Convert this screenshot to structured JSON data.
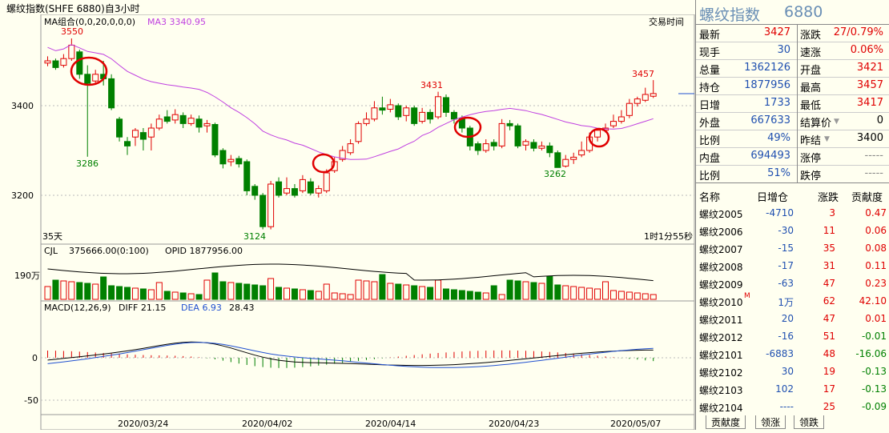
{
  "window_title": "螺纹指数(SHFE 6880)自3小时",
  "main_chart": {
    "ma_group_label": "MA组合(0,0,20,0,0,0)",
    "ma3_label": "MA3 3340.95",
    "trade_time_label": "交易时间",
    "period_label": "35天",
    "countdown_label": "1时1分55秒",
    "y_ticks": [
      "3400",
      "3200"
    ],
    "annotations": [
      "3550",
      "3286",
      "3431",
      "3124",
      "3262",
      "3457"
    ]
  },
  "volume_chart": {
    "label": "CJL",
    "cjl_value": "375666.00(0:100)",
    "opid_label": "OPID 1877956.00",
    "y_tick": "190万"
  },
  "macd_chart": {
    "label": "MACD(12,26,9)",
    "diff_label": "DIFF 21.15",
    "dea_label": "DEA 6.93",
    "macd_value": "28.43",
    "y_ticks": [
      "0",
      "-50"
    ]
  },
  "x_axis": {
    "dates": [
      "2020/03/24",
      "2020/04/02",
      "2020/04/14",
      "2020/04/23",
      "2020/05/07"
    ]
  },
  "quote": {
    "name": "螺纹指数",
    "code": "6880",
    "rows": [
      {
        "l1": "最新",
        "v1": "3427",
        "c1": "red",
        "l2": "涨跌",
        "v2": "27/0.79%",
        "c2": "red"
      },
      {
        "l1": "现手",
        "v1": "30",
        "c1": "blue",
        "l2": "速涨",
        "v2": "0.06%",
        "c2": "red"
      },
      {
        "l1": "总量",
        "v1": "1362126",
        "c1": "blue",
        "l2": "开盘",
        "v2": "3421",
        "c2": "red"
      },
      {
        "l1": "持仓",
        "v1": "1877956",
        "c1": "blue",
        "l2": "最高",
        "v2": "3457",
        "c2": "red"
      },
      {
        "l1": "日增",
        "v1": "1733",
        "c1": "blue",
        "l2": "最低",
        "v2": "3417",
        "c2": "red"
      },
      {
        "l1": "外盘",
        "v1": "667633",
        "c1": "blue",
        "l2": "结算价",
        "v2": "0",
        "c2": "black"
      },
      {
        "l1": "比例",
        "v1": "49%",
        "c1": "blue",
        "l2": "昨结",
        "v2": "3400",
        "c2": "black"
      },
      {
        "l1": "内盘",
        "v1": "694493",
        "c1": "blue",
        "l2": "涨停",
        "v2": "-----",
        "c2": "dots"
      },
      {
        "l1": "比例",
        "v1": "51%",
        "c1": "blue",
        "l2": "跌停",
        "v2": "-----",
        "c2": "dots"
      }
    ]
  },
  "contract_table": {
    "headers": [
      "名称",
      "日增仓",
      "涨跌",
      "贡献度"
    ],
    "rows": [
      {
        "name": "螺纹2005",
        "inc": "-4710",
        "chg": "3",
        "contrib": "0.47",
        "cc": "red"
      },
      {
        "name": "螺纹2006",
        "inc": "-30",
        "chg": "11",
        "contrib": "0.06",
        "cc": "red"
      },
      {
        "name": "螺纹2007",
        "inc": "-15",
        "chg": "35",
        "contrib": "0.08",
        "cc": "red"
      },
      {
        "name": "螺纹2008",
        "inc": "-17",
        "chg": "31",
        "contrib": "0.11",
        "cc": "red"
      },
      {
        "name": "螺纹2009",
        "inc": "-63",
        "chg": "47",
        "contrib": "0.23",
        "cc": "red"
      },
      {
        "name": "螺纹2010",
        "inc": "1万",
        "chg": "62",
        "contrib": "42.10",
        "cc": "red",
        "mark": "M"
      },
      {
        "name": "螺纹2011",
        "inc": "20",
        "chg": "47",
        "contrib": "0.01",
        "cc": "red"
      },
      {
        "name": "螺纹2012",
        "inc": "-16",
        "chg": "51",
        "contrib": "-0.01",
        "cc": "green"
      },
      {
        "name": "螺纹2101",
        "inc": "-6883",
        "chg": "48",
        "contrib": "-16.06",
        "cc": "green"
      },
      {
        "name": "螺纹2102",
        "inc": "30",
        "chg": "19",
        "contrib": "-0.13",
        "cc": "green"
      },
      {
        "name": "螺纹2103",
        "inc": "102",
        "chg": "17",
        "contrib": "-0.13",
        "cc": "green"
      },
      {
        "name": "螺纹2104",
        "inc": "----",
        "chg": "25",
        "contrib": "-0.09",
        "cc": "green"
      }
    ]
  },
  "tabs": [
    "贡献度",
    "领涨",
    "领跌"
  ],
  "colors": {
    "up": "#e00000",
    "down": "#008000",
    "ma": "#c040e0",
    "dea": "#2050d0",
    "diff": "#000000",
    "circle": "#e00000"
  }
}
